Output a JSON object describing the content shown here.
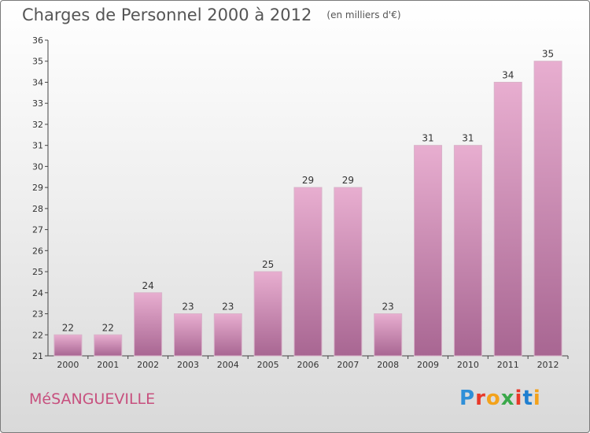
{
  "header": {
    "title": "Charges de Personnel 2000 à 2012",
    "unit": "(en milliers d'€)"
  },
  "footer": {
    "commune": "MéSANGUEVILLE",
    "brand": "Proxiti",
    "brand_colors": [
      "#2f8fd8",
      "#e8392a",
      "#f3a21b",
      "#3aa84a",
      "#e8392a",
      "#1f7fd0",
      "#f3a21b"
    ]
  },
  "colors": {
    "bar_top": "#e8aed0",
    "bar_bottom": "#a86692",
    "text": "#555555",
    "commune": "#c7507e"
  },
  "chart_data": {
    "type": "bar",
    "categories": [
      "2000",
      "2001",
      "2002",
      "2003",
      "2004",
      "2005",
      "2006",
      "2007",
      "2008",
      "2009",
      "2010",
      "2011",
      "2012"
    ],
    "values": [
      22,
      22,
      24,
      23,
      23,
      25,
      29,
      29,
      23,
      31,
      31,
      34,
      35
    ],
    "title": "Charges de Personnel 2000 à 2012",
    "xlabel": "",
    "ylabel": "",
    "ylim": [
      21,
      36
    ],
    "yticks": [
      21,
      22,
      23,
      24,
      25,
      26,
      27,
      28,
      29,
      30,
      31,
      32,
      33,
      34,
      35,
      36
    ],
    "grid": false,
    "legend": "none"
  }
}
